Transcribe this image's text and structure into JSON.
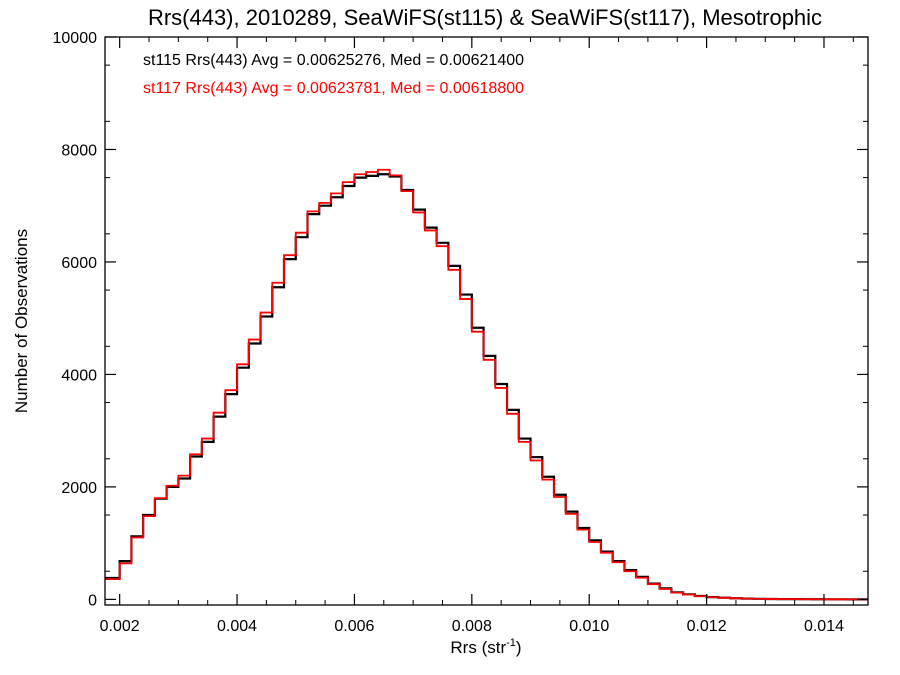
{
  "chart_data": {
    "type": "line",
    "style": "histogram-step",
    "title": "Rrs(443), 2010289, SeaWiFS(st115) & SeaWiFS(st117), Mesotrophic",
    "xlabel_base": "Rrs (str",
    "xlabel_sup": "-1",
    "xlabel_tail": ")",
    "ylabel": "Number of Observations",
    "xlim": [
      0.00175,
      0.01475
    ],
    "ylim": [
      -100,
      10000
    ],
    "x_ticks": [
      0.002,
      0.004,
      0.006,
      0.008,
      0.01,
      0.012,
      0.014
    ],
    "x_tick_labels": [
      "0.002",
      "0.004",
      "0.006",
      "0.008",
      "0.010",
      "0.012",
      "0.014"
    ],
    "y_ticks": [
      0,
      2000,
      4000,
      6000,
      8000,
      10000
    ],
    "y_tick_labels": [
      "0",
      "2000",
      "4000",
      "6000",
      "8000",
      "10000"
    ],
    "grid": false,
    "annotations": [
      {
        "text": "st115 Rrs(443) Avg = 0.00625276, Med = 0.00621400",
        "color": "#000000"
      },
      {
        "text": "st117 Rrs(443) Avg = 0.00623781, Med = 0.00618800",
        "color": "#ff0000"
      }
    ],
    "series": [
      {
        "color": "#000000",
        "x": [
          0.00175,
          0.002,
          0.0022,
          0.0024,
          0.0026,
          0.0028,
          0.003,
          0.0032,
          0.0034,
          0.0036,
          0.0038,
          0.004,
          0.0042,
          0.0044,
          0.0046,
          0.0048,
          0.005,
          0.0052,
          0.0054,
          0.0056,
          0.0058,
          0.006,
          0.0062,
          0.0064,
          0.0066,
          0.0068,
          0.007,
          0.0072,
          0.0074,
          0.0076,
          0.0078,
          0.008,
          0.0082,
          0.0084,
          0.0086,
          0.0088,
          0.009,
          0.0092,
          0.0094,
          0.0096,
          0.0098,
          0.01,
          0.0102,
          0.0104,
          0.0106,
          0.0108,
          0.011,
          0.0112,
          0.0114,
          0.0116,
          0.0118,
          0.012,
          0.0122,
          0.0124,
          0.0126,
          0.0128,
          0.013,
          0.0132,
          0.0134,
          0.0136,
          0.0138,
          0.014,
          0.0142,
          0.0144,
          0.01475
        ],
        "y": [
          380,
          680,
          1120,
          1500,
          1790,
          2000,
          2150,
          2540,
          2800,
          3250,
          3650,
          4120,
          4550,
          5030,
          5550,
          6050,
          6440,
          6850,
          7000,
          7150,
          7350,
          7500,
          7530,
          7560,
          7520,
          7280,
          6930,
          6610,
          6340,
          5930,
          5420,
          4830,
          4330,
          3830,
          3370,
          2860,
          2530,
          2180,
          1860,
          1560,
          1270,
          1050,
          850,
          680,
          520,
          400,
          280,
          195,
          125,
          90,
          60,
          40,
          30,
          20,
          14,
          10,
          7,
          5,
          4,
          3,
          2,
          1,
          1,
          0,
          0
        ]
      },
      {
        "color": "#ff0000",
        "x": [
          0.00175,
          0.002,
          0.0022,
          0.0024,
          0.0026,
          0.0028,
          0.003,
          0.0032,
          0.0034,
          0.0036,
          0.0038,
          0.004,
          0.0042,
          0.0044,
          0.0046,
          0.0048,
          0.005,
          0.0052,
          0.0054,
          0.0056,
          0.0058,
          0.006,
          0.0062,
          0.0064,
          0.0066,
          0.0068,
          0.007,
          0.0072,
          0.0074,
          0.0076,
          0.0078,
          0.008,
          0.0082,
          0.0084,
          0.0086,
          0.0088,
          0.009,
          0.0092,
          0.0094,
          0.0096,
          0.0098,
          0.01,
          0.0102,
          0.0104,
          0.0106,
          0.0108,
          0.011,
          0.0112,
          0.0114,
          0.0116,
          0.0118,
          0.012,
          0.0122,
          0.0124,
          0.0126,
          0.0128,
          0.013,
          0.0132,
          0.0134,
          0.0136,
          0.0138,
          0.014,
          0.0142,
          0.0144,
          0.01475
        ],
        "y": [
          360,
          640,
          1100,
          1480,
          1800,
          2020,
          2200,
          2580,
          2860,
          3320,
          3720,
          4180,
          4620,
          5100,
          5630,
          6120,
          6520,
          6900,
          7050,
          7220,
          7420,
          7560,
          7600,
          7640,
          7540,
          7260,
          6880,
          6560,
          6280,
          5860,
          5340,
          4760,
          4260,
          3760,
          3300,
          2800,
          2470,
          2130,
          1820,
          1520,
          1240,
          1020,
          830,
          660,
          500,
          385,
          270,
          185,
          120,
          85,
          58,
          38,
          28,
          19,
          13,
          9,
          6,
          5,
          4,
          3,
          2,
          1,
          1,
          0,
          0
        ]
      }
    ]
  }
}
